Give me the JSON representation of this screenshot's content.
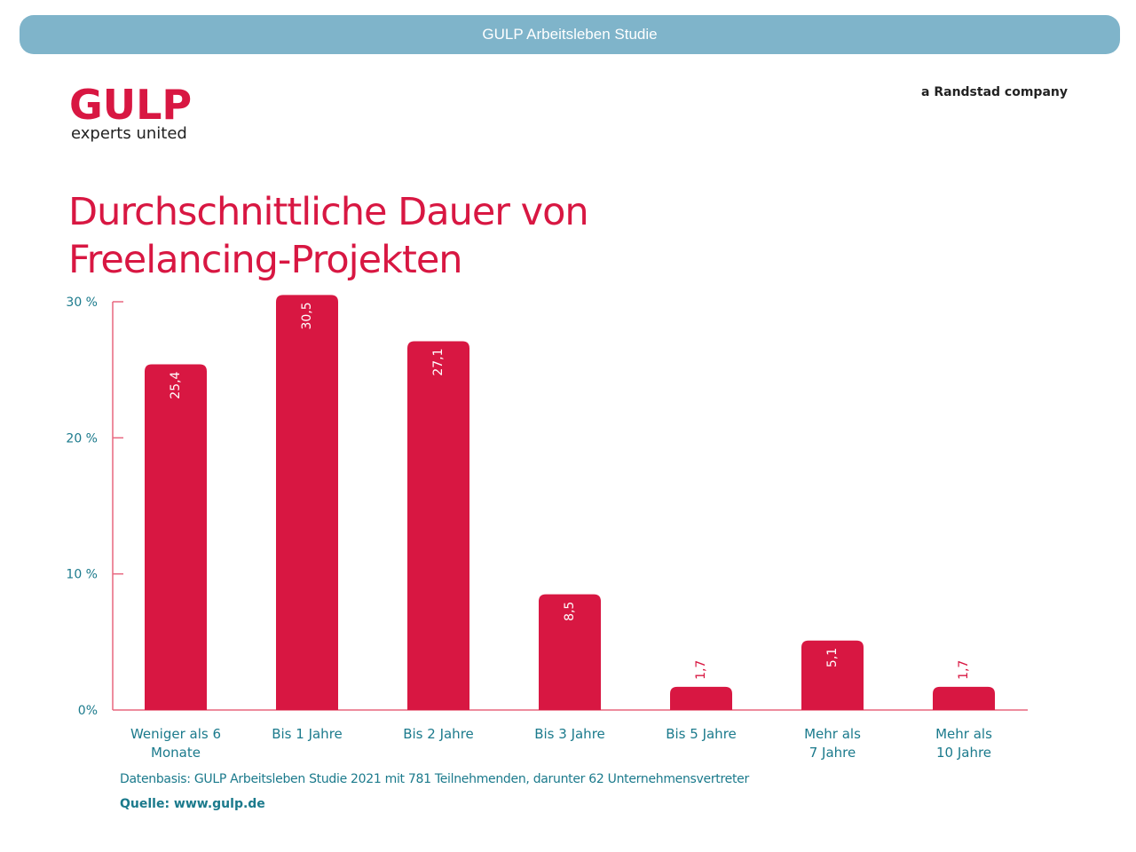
{
  "header": {
    "banner_title": "GULP Arbeitsleben Studie",
    "logo_main": "GULP",
    "logo_sub": "experts united",
    "company_tag": "a Randstad company"
  },
  "colors": {
    "banner": "#7fb4ca",
    "brand_red": "#d81742",
    "axis_teal": "#1b7a8c"
  },
  "chart_data": {
    "type": "bar",
    "title": "Durchschnittliche Dauer von Freelancing-Projekten",
    "xlabel": "",
    "ylabel": "",
    "ylim": [
      0,
      30
    ],
    "yticks": [
      {
        "value": 0,
        "label": "0%"
      },
      {
        "value": 10,
        "label": "10 %"
      },
      {
        "value": 20,
        "label": "20 %"
      },
      {
        "value": 30,
        "label": "30 %"
      }
    ],
    "grid": false,
    "legend": "none",
    "categories": [
      [
        "Weniger als 6",
        "Monate"
      ],
      [
        "Bis 1 Jahre"
      ],
      [
        "Bis 2 Jahre"
      ],
      [
        "Bis 3 Jahre"
      ],
      [
        "Bis 5 Jahre"
      ],
      [
        "Mehr als",
        "7 Jahre"
      ],
      [
        "Mehr als",
        "10 Jahre"
      ]
    ],
    "values": [
      25.4,
      30.5,
      27.1,
      8.5,
      1.7,
      5.1,
      1.7
    ],
    "value_labels": [
      "25,4",
      "30,5",
      "27,1",
      "8,5",
      "1,7",
      "5,1",
      "1,7"
    ]
  },
  "footer": {
    "datenbasis": "Datenbasis: GULP Arbeitsleben Studie 2021 mit 781 Teilnehmenden, darunter 62 Unternehmensvertreter",
    "quelle": "Quelle: www.gulp.de"
  }
}
